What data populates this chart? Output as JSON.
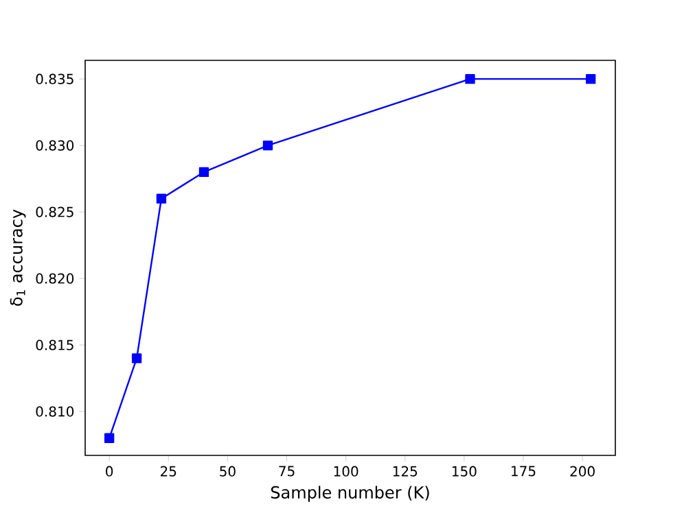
{
  "chart_data": {
    "type": "line",
    "xlabel": "Sample number (K)",
    "ylabel": "δ$_{1}$ accuracy",
    "x": [
      0,
      11.6,
      22,
      40,
      67,
      152.5,
      203.5
    ],
    "series": [
      {
        "color": "#0000ff",
        "values": [
          0.808,
          0.814,
          0.826,
          0.828,
          0.83,
          0.835,
          0.835
        ]
      }
    ],
    "xlim": [
      -10.2,
      213.9
    ],
    "ylim": [
      0.8067,
      0.8364
    ],
    "xticks": [
      0,
      25,
      50,
      75,
      100,
      125,
      150,
      175,
      200
    ],
    "yticks": [
      {
        "value": 0.81,
        "label": "0.810"
      },
      {
        "value": 0.815,
        "label": "0.815"
      },
      {
        "value": 0.82,
        "label": "0.820"
      },
      {
        "value": 0.825,
        "label": "0.825"
      },
      {
        "value": 0.83,
        "label": "0.830"
      },
      {
        "value": 0.835,
        "label": "0.835"
      }
    ],
    "marker": "square",
    "line_style": "solid"
  }
}
